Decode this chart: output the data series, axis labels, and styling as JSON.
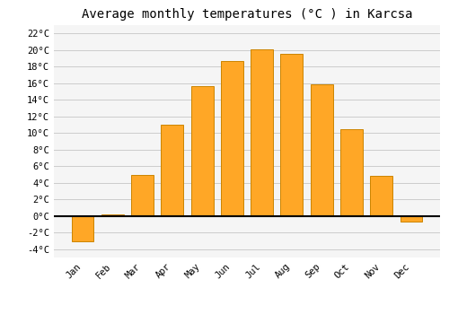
{
  "title": "Average monthly temperatures (°C ) in Karcsa",
  "months": [
    "Jan",
    "Feb",
    "Mar",
    "Apr",
    "May",
    "Jun",
    "Jul",
    "Aug",
    "Sep",
    "Oct",
    "Nov",
    "Dec"
  ],
  "values": [
    -3.0,
    0.2,
    5.0,
    11.0,
    15.7,
    18.7,
    20.1,
    19.5,
    15.9,
    10.5,
    4.8,
    -0.7
  ],
  "bar_color": "#FFA726",
  "bar_edge_color": "#CC8400",
  "background_color": "#ffffff",
  "plot_bg_color": "#f5f5f5",
  "grid_color": "#cccccc",
  "title_fontsize": 10,
  "tick_label_fontsize": 7.5,
  "ylim": [
    -5,
    23
  ],
  "yticks": [
    -4,
    -2,
    0,
    2,
    4,
    6,
    8,
    10,
    12,
    14,
    16,
    18,
    20,
    22
  ],
  "zero_line_color": "#000000",
  "font_family": "monospace"
}
